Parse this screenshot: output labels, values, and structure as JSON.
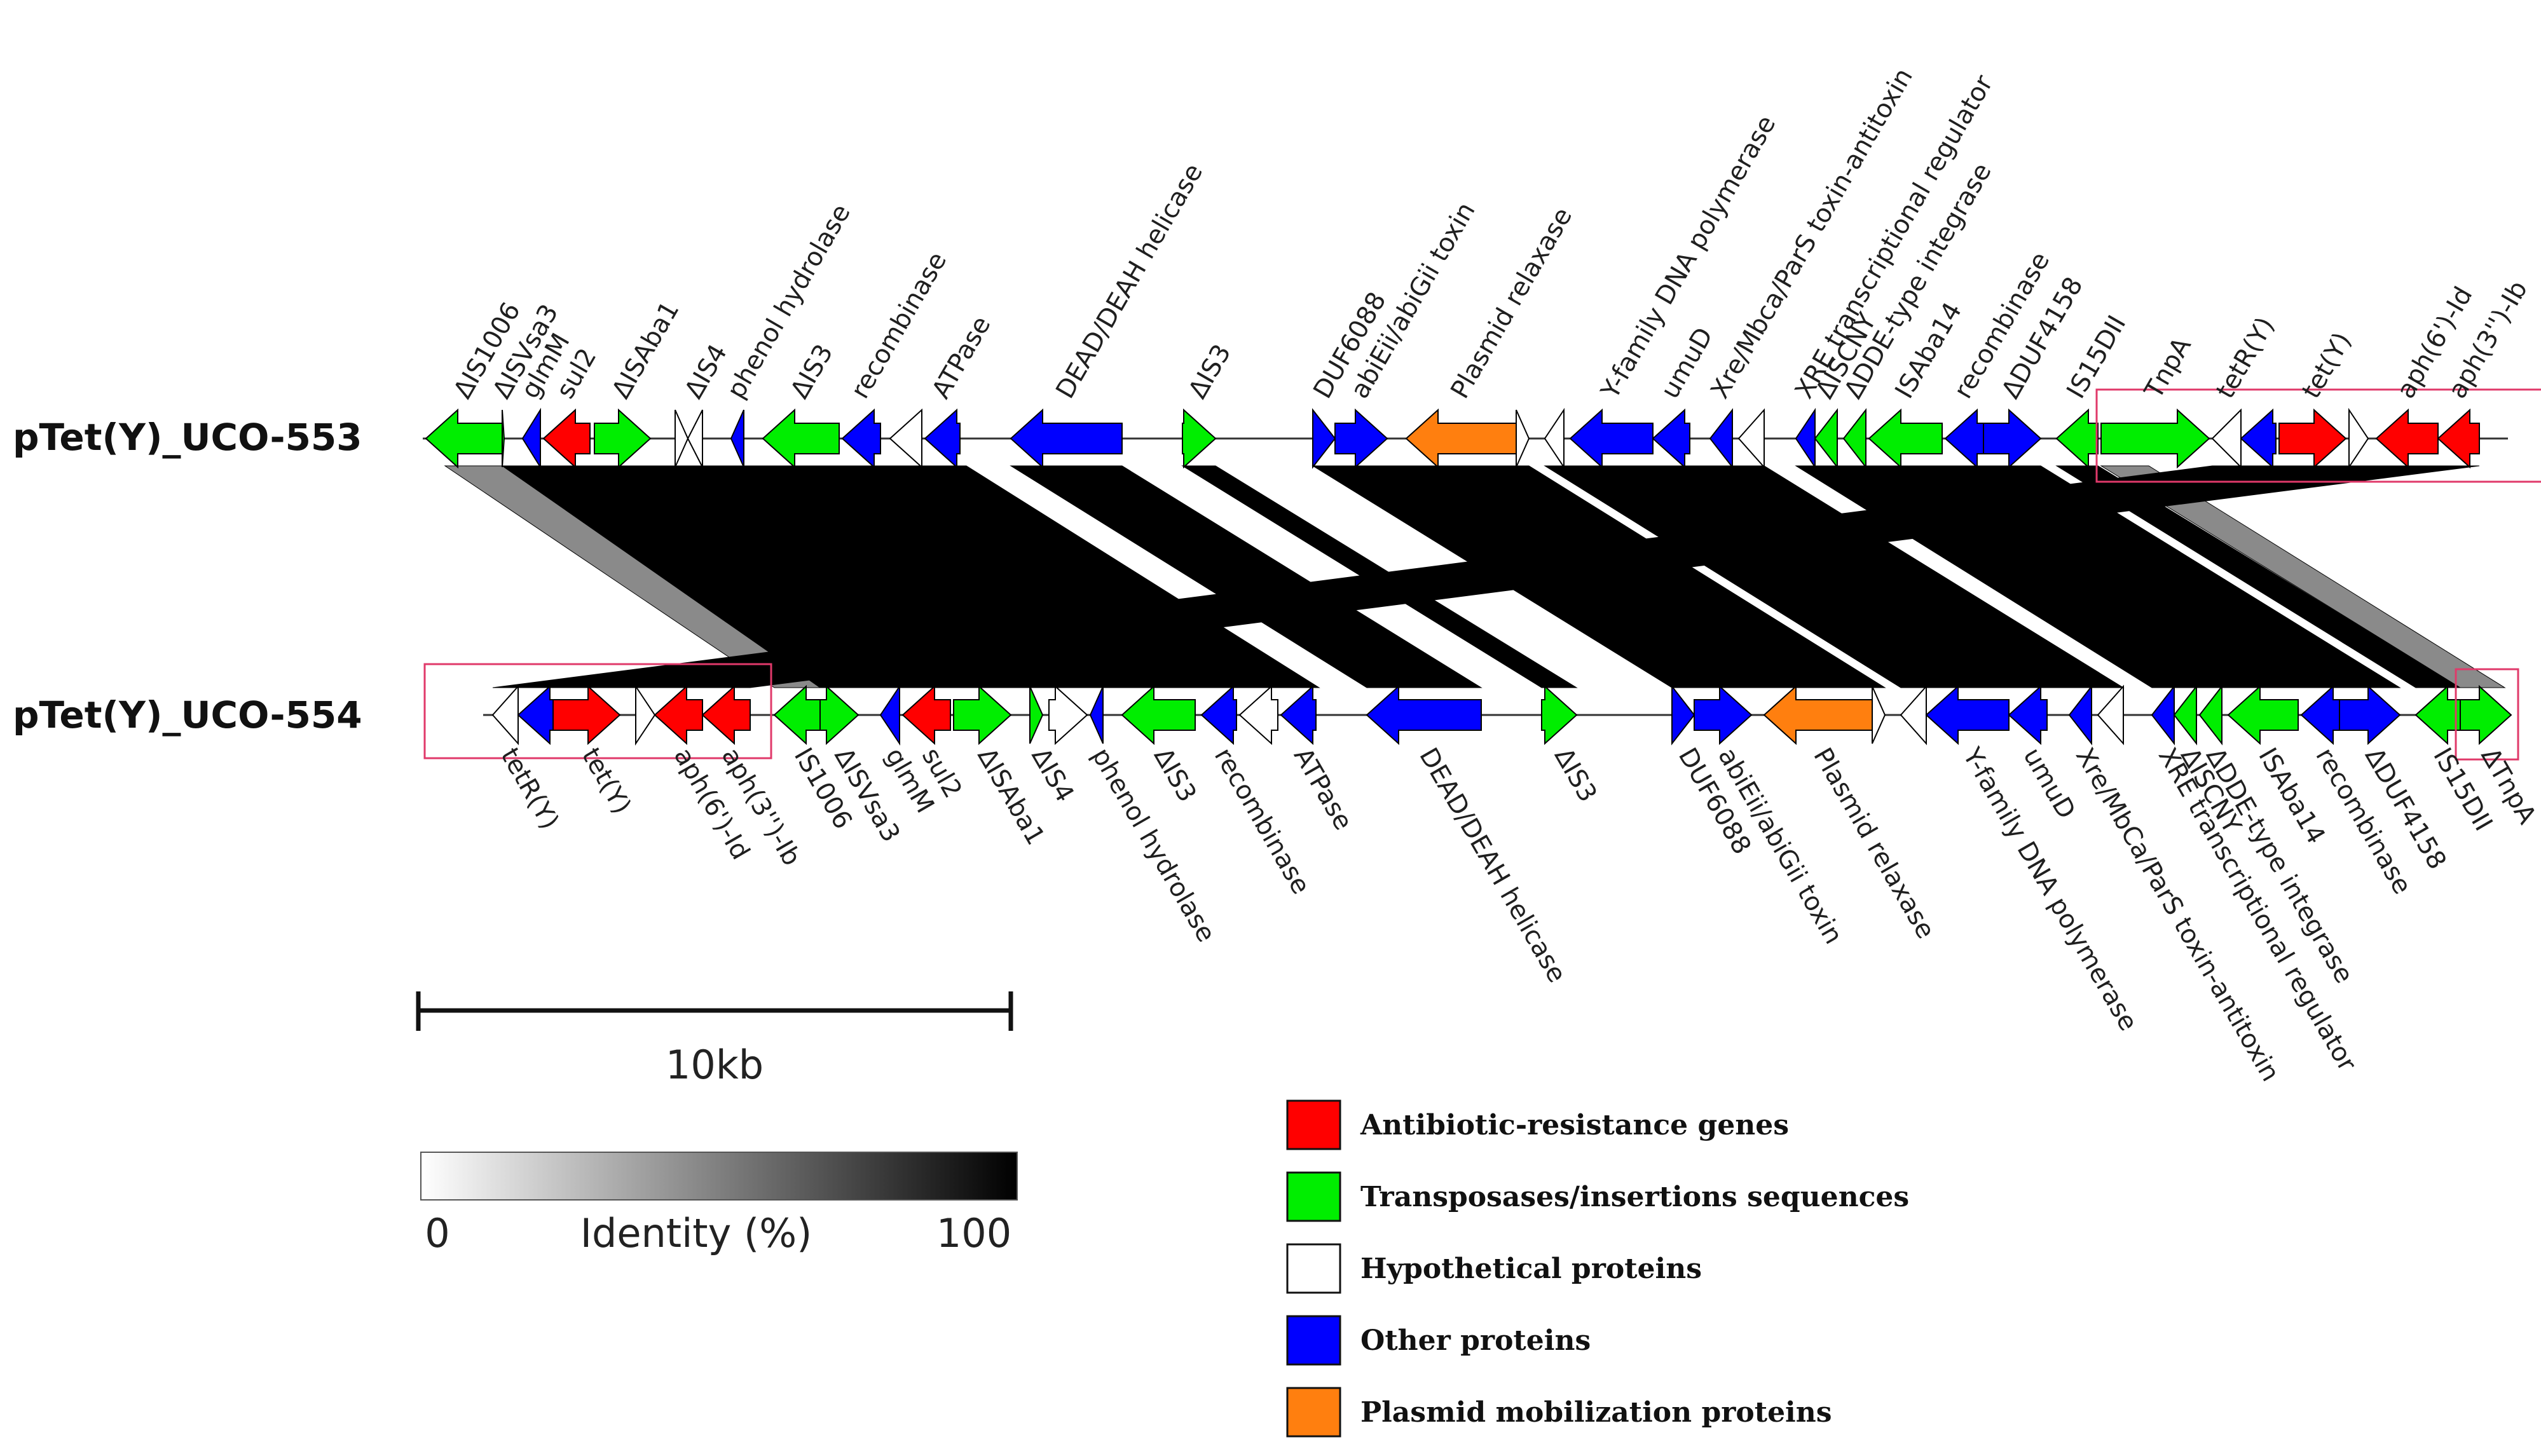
{
  "colors": {
    "antibiotic": "#ff0000",
    "transposase": "#00ee00",
    "hypothetical": "#ffffff",
    "other": "#0000ff",
    "mobilization": "#ff7f0f",
    "link_high": "#000000",
    "link_mid": "#8a8a8a",
    "box": "#e0396a"
  },
  "tracks": [
    {
      "name": "pTet(Y)_UCO-553",
      "genes": [
        {
          "label": "ΔIS1006",
          "start": 670,
          "end": 790,
          "strand": -1,
          "type": "transposase"
        },
        {
          "label": "ΔISVsa3",
          "start": 790,
          "end": 793,
          "strand": 1,
          "type": "transposase"
        },
        {
          "label": "glmM",
          "start": 822,
          "end": 850,
          "strand": -1,
          "type": "other"
        },
        {
          "label": "sul2",
          "start": 855,
          "end": 928,
          "strand": -1,
          "type": "antibiotic"
        },
        {
          "label": "ΔISAba1",
          "start": 935,
          "end": 1023,
          "strand": 1,
          "type": "transposase"
        },
        {
          "label": "",
          "start": 1062,
          "end": 1082,
          "strand": 1,
          "type": "hypothetical"
        },
        {
          "label": "ΔIS4",
          "start": 1082,
          "end": 1105,
          "strand": -1,
          "type": "hypothetical"
        },
        {
          "label": "phenol hydrolase",
          "start": 1150,
          "end": 1170,
          "strand": -1,
          "type": "other"
        },
        {
          "label": "ΔIS3",
          "start": 1200,
          "end": 1320,
          "strand": -1,
          "type": "transposase"
        },
        {
          "label": "recombinase",
          "start": 1325,
          "end": 1385,
          "strand": -1,
          "type": "other"
        },
        {
          "label": "",
          "start": 1400,
          "end": 1450,
          "strand": -1,
          "type": "hypothetical"
        },
        {
          "label": "ATPase",
          "start": 1455,
          "end": 1510,
          "strand": -1,
          "type": "other"
        },
        {
          "label": "DEAD/DEAH helicase",
          "start": 1590,
          "end": 1765,
          "strand": -1,
          "type": "other"
        },
        {
          "label": "ΔIS3",
          "start": 1860,
          "end": 1912,
          "strand": 1,
          "type": "transposase"
        },
        {
          "label": "DUF6088",
          "start": 2065,
          "end": 2100,
          "strand": 1,
          "type": "other"
        },
        {
          "label": "abiEii/abiGii toxin",
          "start": 2100,
          "end": 2182,
          "strand": 1,
          "type": "other"
        },
        {
          "label": "Plasmid relaxase",
          "start": 2212,
          "end": 2385,
          "strand": -1,
          "type": "mobilization"
        },
        {
          "label": "",
          "start": 2385,
          "end": 2405,
          "strand": 1,
          "type": "hypothetical"
        },
        {
          "label": "",
          "start": 2430,
          "end": 2460,
          "strand": -1,
          "type": "hypothetical"
        },
        {
          "label": "Y-family DNA polymerase",
          "start": 2470,
          "end": 2600,
          "strand": -1,
          "type": "other"
        },
        {
          "label": "umuD",
          "start": 2600,
          "end": 2658,
          "strand": -1,
          "type": "other"
        },
        {
          "label": "Xre/Mbca/ParS toxin-antitoxin",
          "start": 2690,
          "end": 2725,
          "strand": -1,
          "type": "other"
        },
        {
          "label": "",
          "start": 2735,
          "end": 2775,
          "strand": -1,
          "type": "hypothetical"
        },
        {
          "label": "XRE transcriptional regulator",
          "start": 2825,
          "end": 2855,
          "strand": -1,
          "type": "other"
        },
        {
          "label": "ΔISCNY",
          "start": 2855,
          "end": 2890,
          "strand": -1,
          "type": "transposase"
        },
        {
          "label": "ΔDDE-type integrase",
          "start": 2900,
          "end": 2935,
          "strand": -1,
          "type": "transposase"
        },
        {
          "label": "ISAba14",
          "start": 2940,
          "end": 3055,
          "strand": -1,
          "type": "transposase"
        },
        {
          "label": "recombinase",
          "start": 3060,
          "end": 3120,
          "strand": -1,
          "type": "other"
        },
        {
          "label": "ΔDUF4158",
          "start": 3120,
          "end": 3210,
          "strand": 1,
          "type": "other"
        },
        {
          "label": "IS15DII",
          "start": 3235,
          "end": 3300,
          "strand": -1,
          "type": "transposase"
        },
        {
          "label": "TnpA",
          "start": 3305,
          "end": 3475,
          "strand": 1,
          "type": "transposase"
        },
        {
          "label": "tetR(Y)",
          "start": 3480,
          "end": 3525,
          "strand": -1,
          "type": "hypothetical"
        },
        {
          "label": "",
          "start": 3525,
          "end": 3580,
          "strand": -1,
          "type": "other"
        },
        {
          "label": "tet(Y)",
          "start": 3585,
          "end": 3690,
          "strand": 1,
          "type": "antibiotic"
        },
        {
          "label": "",
          "start": 3695,
          "end": 3725,
          "strand": 1,
          "type": "hypothetical"
        },
        {
          "label": "aph(6')-Id",
          "start": 3738,
          "end": 3835,
          "strand": -1,
          "type": "antibiotic"
        },
        {
          "label": "aph(3'')-Ib",
          "start": 3835,
          "end": 3900,
          "strand": -1,
          "type": "antibiotic"
        }
      ]
    },
    {
      "name": "pTet(Y)_UCO-554",
      "genes": [
        {
          "label": "tetR(Y)",
          "start": 775,
          "end": 815,
          "strand": -1,
          "type": "hypothetical"
        },
        {
          "label": "",
          "start": 815,
          "end": 870,
          "strand": -1,
          "type": "other"
        },
        {
          "label": "tet(Y)",
          "start": 870,
          "end": 975,
          "strand": 1,
          "type": "antibiotic"
        },
        {
          "label": "",
          "start": 1000,
          "end": 1030,
          "strand": 1,
          "type": "hypothetical"
        },
        {
          "label": "aph(6')-Id",
          "start": 1030,
          "end": 1105,
          "strand": -1,
          "type": "antibiotic"
        },
        {
          "label": "aph(3'')-Ib",
          "start": 1105,
          "end": 1180,
          "strand": -1,
          "type": "antibiotic"
        },
        {
          "label": "IS1006",
          "start": 1218,
          "end": 1295,
          "strand": -1,
          "type": "transposase"
        },
        {
          "label": "ΔISVsa3",
          "start": 1290,
          "end": 1350,
          "strand": 1,
          "type": "transposase"
        },
        {
          "label": "glmM",
          "start": 1385,
          "end": 1415,
          "strand": -1,
          "type": "other"
        },
        {
          "label": "sul2",
          "start": 1420,
          "end": 1495,
          "strand": -1,
          "type": "antibiotic"
        },
        {
          "label": "ΔISAba1",
          "start": 1500,
          "end": 1590,
          "strand": 1,
          "type": "transposase"
        },
        {
          "label": "ΔIS4",
          "start": 1620,
          "end": 1640,
          "strand": 1,
          "type": "transposase"
        },
        {
          "label": "",
          "start": 1650,
          "end": 1710,
          "strand": 1,
          "type": "hypothetical"
        },
        {
          "label": "phenol hydrolase",
          "start": 1715,
          "end": 1735,
          "strand": -1,
          "type": "other"
        },
        {
          "label": "ΔIS3",
          "start": 1765,
          "end": 1880,
          "strand": -1,
          "type": "transposase"
        },
        {
          "label": "recombinase",
          "start": 1890,
          "end": 1945,
          "strand": -1,
          "type": "other"
        },
        {
          "label": "",
          "start": 1950,
          "end": 2010,
          "strand": -1,
          "type": "hypothetical"
        },
        {
          "label": "ATPase",
          "start": 2015,
          "end": 2070,
          "strand": -1,
          "type": "other"
        },
        {
          "label": "DEAD/DEAH helicase",
          "start": 2150,
          "end": 2330,
          "strand": -1,
          "type": "other"
        },
        {
          "label": "ΔIS3",
          "start": 2425,
          "end": 2480,
          "strand": 1,
          "type": "transposase"
        },
        {
          "label": "DUF6088",
          "start": 2630,
          "end": 2665,
          "strand": 1,
          "type": "other"
        },
        {
          "label": "abiEii/abiGii toxin",
          "start": 2665,
          "end": 2755,
          "strand": 1,
          "type": "other"
        },
        {
          "label": "Plasmid relaxase",
          "start": 2775,
          "end": 2945,
          "strand": -1,
          "type": "mobilization"
        },
        {
          "label": "",
          "start": 2945,
          "end": 2965,
          "strand": 1,
          "type": "hypothetical"
        },
        {
          "label": "",
          "start": 2990,
          "end": 3030,
          "strand": -1,
          "type": "hypothetical"
        },
        {
          "label": "Y-family DNA polymerase",
          "start": 3030,
          "end": 3160,
          "strand": -1,
          "type": "other"
        },
        {
          "label": "umuD",
          "start": 3160,
          "end": 3220,
          "strand": -1,
          "type": "other"
        },
        {
          "label": "Xre/MbCa/ParS toxin-antitoxin",
          "start": 3255,
          "end": 3290,
          "strand": -1,
          "type": "other"
        },
        {
          "label": "",
          "start": 3300,
          "end": 3340,
          "strand": -1,
          "type": "hypothetical"
        },
        {
          "label": "XRE transcriptional regulator",
          "start": 3385,
          "end": 3420,
          "strand": -1,
          "type": "other"
        },
        {
          "label": "ΔISCNY",
          "start": 3420,
          "end": 3455,
          "strand": -1,
          "type": "transposase"
        },
        {
          "label": "ΔDDE-type integrase",
          "start": 3460,
          "end": 3495,
          "strand": -1,
          "type": "transposase"
        },
        {
          "label": "ISAba14",
          "start": 3505,
          "end": 3615,
          "strand": -1,
          "type": "transposase"
        },
        {
          "label": "recombinase",
          "start": 3620,
          "end": 3680,
          "strand": -1,
          "type": "other"
        },
        {
          "label": "ΔDUF4158",
          "start": 3680,
          "end": 3775,
          "strand": 1,
          "type": "other"
        },
        {
          "label": "IS15DII",
          "start": 3800,
          "end": 3870,
          "strand": -1,
          "type": "transposase"
        },
        {
          "label": "ΔTnpA",
          "start": 3870,
          "end": 3950,
          "strand": 1,
          "type": "transposase"
        }
      ]
    }
  ],
  "links": [
    {
      "s1": 700,
      "e1": 790,
      "s2": 1218,
      "e2": 1295,
      "shade": "mid"
    },
    {
      "s1": 790,
      "e1": 1520,
      "s2": 1290,
      "e2": 2075,
      "shade": "high"
    },
    {
      "s1": 1590,
      "e1": 1765,
      "s2": 2150,
      "e2": 2330,
      "shade": "high"
    },
    {
      "s1": 1860,
      "e1": 1912,
      "s2": 2425,
      "e2": 2480,
      "shade": "high"
    },
    {
      "s1": 2065,
      "e1": 2405,
      "s2": 2630,
      "e2": 2965,
      "shade": "high"
    },
    {
      "s1": 2430,
      "e1": 2775,
      "s2": 2990,
      "e2": 3340,
      "shade": "high"
    },
    {
      "s1": 2825,
      "e1": 3210,
      "s2": 3385,
      "e2": 3775,
      "shade": "high"
    },
    {
      "s1": 3235,
      "e1": 3300,
      "s2": 3800,
      "e2": 3870,
      "shade": "high"
    },
    {
      "s1": 3305,
      "e1": 3380,
      "s2": 3870,
      "e2": 3940,
      "shade": "mid"
    },
    {
      "s1": 3480,
      "e1": 3900,
      "s2": 775,
      "e2": 1180,
      "shade": "high"
    }
  ],
  "scale_bar": {
    "label": "10kb"
  },
  "identity_bar": {
    "min_label": "0",
    "title": "Identity (%)",
    "max_label": "100"
  },
  "legend": [
    {
      "label": "Antibiotic-resistance genes",
      "color": "#ff0000"
    },
    {
      "label": "Transposases/insertions sequences",
      "color": "#00ee00"
    },
    {
      "label": "Hypothetical proteins",
      "color": "#ffffff"
    },
    {
      "label": "Other proteins",
      "color": "#0000ff"
    },
    {
      "label": "Plasmid mobilization proteins",
      "color": "#ff7f0f"
    }
  ]
}
